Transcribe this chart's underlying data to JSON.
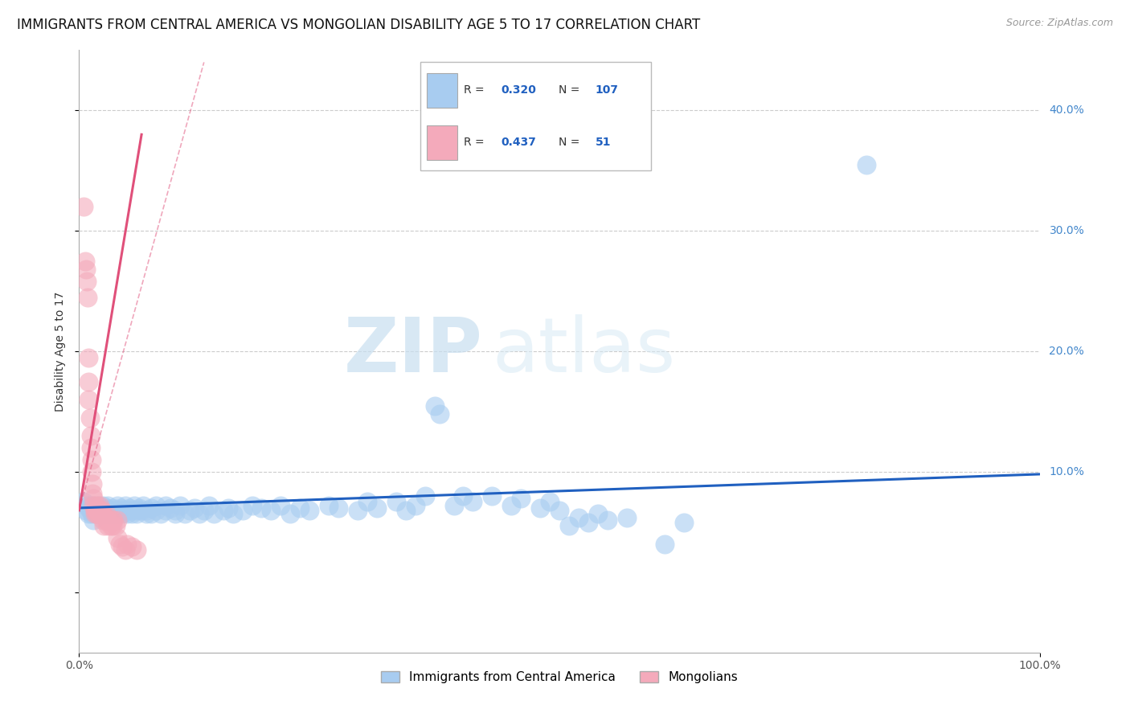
{
  "title": "IMMIGRANTS FROM CENTRAL AMERICA VS MONGOLIAN DISABILITY AGE 5 TO 17 CORRELATION CHART",
  "source": "Source: ZipAtlas.com",
  "ylabel": "Disability Age 5 to 17",
  "legend_bottom": [
    "Immigrants from Central America",
    "Mongolians"
  ],
  "blue_R": 0.32,
  "blue_N": 107,
  "pink_R": 0.437,
  "pink_N": 51,
  "xlim": [
    0.0,
    1.0
  ],
  "ylim": [
    -0.05,
    0.45
  ],
  "xtick_pos": [
    0.0,
    1.0
  ],
  "xtick_labels": [
    "0.0%",
    "100.0%"
  ],
  "ytick_pos": [
    0.0,
    0.1,
    0.2,
    0.3,
    0.4
  ],
  "ytick_labels": [
    "",
    "10.0%",
    "20.0%",
    "30.0%",
    "40.0%"
  ],
  "grid_yticks": [
    0.1,
    0.2,
    0.3,
    0.4
  ],
  "blue_color": "#A8CCF0",
  "pink_color": "#F4AABB",
  "blue_line_color": "#2060C0",
  "pink_line_color": "#E0507A",
  "watermark_zip": "ZIP",
  "watermark_atlas": "atlas",
  "background_color": "#FFFFFF",
  "grid_color": "#CCCCCC",
  "title_fontsize": 12,
  "axis_label_fontsize": 10,
  "tick_color": "#4488CC",
  "blue_scatter": [
    [
      0.005,
      0.075
    ],
    [
      0.007,
      0.068
    ],
    [
      0.008,
      0.072
    ],
    [
      0.01,
      0.065
    ],
    [
      0.01,
      0.07
    ],
    [
      0.012,
      0.068
    ],
    [
      0.012,
      0.072
    ],
    [
      0.013,
      0.065
    ],
    [
      0.015,
      0.068
    ],
    [
      0.015,
      0.072
    ],
    [
      0.015,
      0.06
    ],
    [
      0.017,
      0.07
    ],
    [
      0.017,
      0.065
    ],
    [
      0.018,
      0.068
    ],
    [
      0.02,
      0.072
    ],
    [
      0.02,
      0.065
    ],
    [
      0.02,
      0.068
    ],
    [
      0.022,
      0.07
    ],
    [
      0.022,
      0.065
    ],
    [
      0.025,
      0.068
    ],
    [
      0.025,
      0.072
    ],
    [
      0.027,
      0.065
    ],
    [
      0.028,
      0.07
    ],
    [
      0.03,
      0.068
    ],
    [
      0.03,
      0.072
    ],
    [
      0.032,
      0.065
    ],
    [
      0.033,
      0.068
    ],
    [
      0.035,
      0.07
    ],
    [
      0.035,
      0.065
    ],
    [
      0.038,
      0.068
    ],
    [
      0.04,
      0.072
    ],
    [
      0.04,
      0.065
    ],
    [
      0.042,
      0.068
    ],
    [
      0.043,
      0.07
    ],
    [
      0.045,
      0.065
    ],
    [
      0.045,
      0.068
    ],
    [
      0.048,
      0.072
    ],
    [
      0.05,
      0.065
    ],
    [
      0.05,
      0.068
    ],
    [
      0.052,
      0.07
    ],
    [
      0.055,
      0.065
    ],
    [
      0.055,
      0.068
    ],
    [
      0.057,
      0.072
    ],
    [
      0.06,
      0.065
    ],
    [
      0.06,
      0.068
    ],
    [
      0.062,
      0.07
    ],
    [
      0.065,
      0.068
    ],
    [
      0.067,
      0.072
    ],
    [
      0.07,
      0.065
    ],
    [
      0.07,
      0.068
    ],
    [
      0.075,
      0.07
    ],
    [
      0.075,
      0.065
    ],
    [
      0.08,
      0.068
    ],
    [
      0.08,
      0.072
    ],
    [
      0.085,
      0.065
    ],
    [
      0.09,
      0.068
    ],
    [
      0.09,
      0.072
    ],
    [
      0.095,
      0.07
    ],
    [
      0.1,
      0.065
    ],
    [
      0.1,
      0.068
    ],
    [
      0.105,
      0.072
    ],
    [
      0.11,
      0.065
    ],
    [
      0.115,
      0.068
    ],
    [
      0.12,
      0.07
    ],
    [
      0.125,
      0.065
    ],
    [
      0.13,
      0.068
    ],
    [
      0.135,
      0.072
    ],
    [
      0.14,
      0.065
    ],
    [
      0.15,
      0.068
    ],
    [
      0.155,
      0.07
    ],
    [
      0.16,
      0.065
    ],
    [
      0.17,
      0.068
    ],
    [
      0.18,
      0.072
    ],
    [
      0.19,
      0.07
    ],
    [
      0.2,
      0.068
    ],
    [
      0.21,
      0.072
    ],
    [
      0.22,
      0.065
    ],
    [
      0.23,
      0.07
    ],
    [
      0.24,
      0.068
    ],
    [
      0.26,
      0.072
    ],
    [
      0.27,
      0.07
    ],
    [
      0.29,
      0.068
    ],
    [
      0.3,
      0.075
    ],
    [
      0.31,
      0.07
    ],
    [
      0.33,
      0.075
    ],
    [
      0.34,
      0.068
    ],
    [
      0.35,
      0.072
    ],
    [
      0.36,
      0.08
    ],
    [
      0.37,
      0.155
    ],
    [
      0.375,
      0.148
    ],
    [
      0.39,
      0.072
    ],
    [
      0.4,
      0.08
    ],
    [
      0.41,
      0.075
    ],
    [
      0.43,
      0.08
    ],
    [
      0.45,
      0.072
    ],
    [
      0.46,
      0.078
    ],
    [
      0.48,
      0.07
    ],
    [
      0.49,
      0.075
    ],
    [
      0.5,
      0.068
    ],
    [
      0.51,
      0.055
    ],
    [
      0.52,
      0.062
    ],
    [
      0.53,
      0.058
    ],
    [
      0.54,
      0.065
    ],
    [
      0.55,
      0.06
    ],
    [
      0.57,
      0.062
    ],
    [
      0.61,
      0.04
    ],
    [
      0.63,
      0.058
    ],
    [
      0.82,
      0.355
    ]
  ],
  "pink_scatter": [
    [
      0.005,
      0.32
    ],
    [
      0.006,
      0.275
    ],
    [
      0.007,
      0.268
    ],
    [
      0.008,
      0.258
    ],
    [
      0.009,
      0.245
    ],
    [
      0.01,
      0.195
    ],
    [
      0.01,
      0.175
    ],
    [
      0.01,
      0.16
    ],
    [
      0.011,
      0.145
    ],
    [
      0.012,
      0.13
    ],
    [
      0.012,
      0.12
    ],
    [
      0.013,
      0.11
    ],
    [
      0.013,
      0.1
    ],
    [
      0.014,
      0.09
    ],
    [
      0.014,
      0.082
    ],
    [
      0.015,
      0.078
    ],
    [
      0.015,
      0.072
    ],
    [
      0.016,
      0.068
    ],
    [
      0.016,
      0.065
    ],
    [
      0.017,
      0.068
    ],
    [
      0.018,
      0.065
    ],
    [
      0.018,
      0.072
    ],
    [
      0.019,
      0.068
    ],
    [
      0.02,
      0.065
    ],
    [
      0.02,
      0.068
    ],
    [
      0.021,
      0.072
    ],
    [
      0.022,
      0.065
    ],
    [
      0.022,
      0.068
    ],
    [
      0.023,
      0.065
    ],
    [
      0.024,
      0.068
    ],
    [
      0.025,
      0.065
    ],
    [
      0.025,
      0.06
    ],
    [
      0.026,
      0.055
    ],
    [
      0.027,
      0.06
    ],
    [
      0.028,
      0.065
    ],
    [
      0.03,
      0.06
    ],
    [
      0.03,
      0.055
    ],
    [
      0.032,
      0.06
    ],
    [
      0.033,
      0.055
    ],
    [
      0.035,
      0.06
    ],
    [
      0.035,
      0.055
    ],
    [
      0.036,
      0.06
    ],
    [
      0.038,
      0.055
    ],
    [
      0.04,
      0.06
    ],
    [
      0.04,
      0.045
    ],
    [
      0.042,
      0.04
    ],
    [
      0.045,
      0.038
    ],
    [
      0.048,
      0.035
    ],
    [
      0.05,
      0.04
    ],
    [
      0.055,
      0.038
    ],
    [
      0.06,
      0.035
    ]
  ],
  "blue_line": [
    [
      0.0,
      0.07
    ],
    [
      1.0,
      0.098
    ]
  ],
  "pink_line": [
    [
      0.0,
      0.068
    ],
    [
      0.065,
      0.38
    ]
  ],
  "pink_line_dashed": [
    [
      0.0,
      0.068
    ],
    [
      0.13,
      0.44
    ]
  ]
}
